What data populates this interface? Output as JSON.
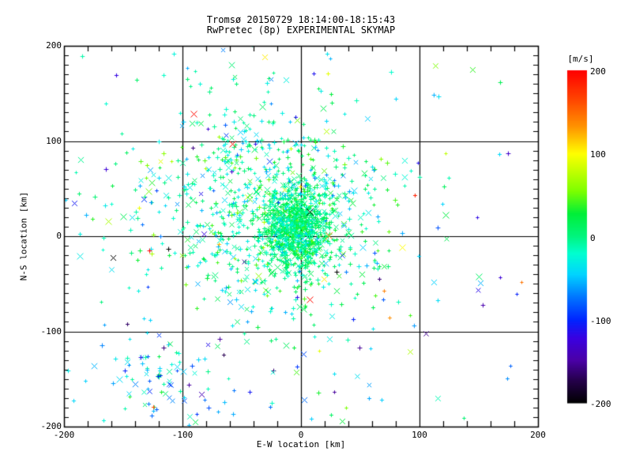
{
  "title": {
    "line1": "Tromsø 20150729 18:14:00-18:15:43",
    "line2": "RwPretec (8p) EXPERIMENTAL SKYMAP"
  },
  "colors": {
    "background": "#ffffff",
    "axis": "#000000",
    "text": "#000000"
  },
  "chart_data": {
    "type": "scatter",
    "title": "Tromsø 20150729 18:14:00-18:15:43",
    "subtitle": "RwPretec (8p) EXPERIMENTAL SKYMAP",
    "xlabel": "E-W location [km]",
    "ylabel": "N-S location [km]",
    "xlim": [
      -200,
      200
    ],
    "ylim": [
      -200,
      200
    ],
    "x_ticks": [
      -200,
      -100,
      0,
      100,
      200
    ],
    "y_ticks": [
      -200,
      -100,
      0,
      100,
      200
    ],
    "x_minor_step": 20,
    "y_minor_step": 10,
    "grid": true,
    "legend_position": "colorbar-right",
    "colorbar": {
      "unit": "[m/s]",
      "min": -200,
      "max": 200,
      "ticks": [
        200,
        100,
        0,
        -100,
        -200
      ],
      "gradient_stops": [
        [
          -200,
          "#000000"
        ],
        [
          -172,
          "#26004d"
        ],
        [
          -148,
          "#4b00a8"
        ],
        [
          -122,
          "#3a00e0"
        ],
        [
          -100,
          "#0024ff"
        ],
        [
          -72,
          "#0077ff"
        ],
        [
          -45,
          "#00d4ff"
        ],
        [
          -20,
          "#00ffd0"
        ],
        [
          0,
          "#00f580"
        ],
        [
          28,
          "#00ef38"
        ],
        [
          55,
          "#7dff00"
        ],
        [
          100,
          "#ffff00"
        ],
        [
          132,
          "#ff9500"
        ],
        [
          163,
          "#ff4a00"
        ],
        [
          200,
          "#ff0000"
        ]
      ]
    },
    "points_encoding": "Doppler velocity [m/s] mapped to color via the colorbar gradient; markers are small plus and cross glyphs; total ~1950 echoes",
    "seed": 11,
    "cross_fraction": 0.26,
    "clusters": [
      {
        "type": "gauss",
        "cx": -4,
        "cy": 10,
        "sx": 14,
        "sy": 21,
        "n": 880,
        "vmean": 4,
        "vsig": 20
      },
      {
        "type": "gauss",
        "cx": -15,
        "cy": 12,
        "sx": 44,
        "sy": 52,
        "n": 560,
        "vmean": -4,
        "vsig": 30
      },
      {
        "type": "gauss",
        "cx": -55,
        "cy": 58,
        "sx": 50,
        "sy": 58,
        "n": 295,
        "vmean": -12,
        "vsig": 34
      },
      {
        "type": "gauss",
        "cx": -120,
        "cy": -148,
        "sx": 33,
        "sy": 26,
        "n": 85,
        "vmean": -48,
        "vsig": 42
      },
      {
        "type": "gauss",
        "cx": 0,
        "cy": -165,
        "sx": 40,
        "sy": 20,
        "n": 14,
        "vmean": -20,
        "vsig": 50
      },
      {
        "type": "uniform",
        "x0": -195,
        "x1": 195,
        "y0": -195,
        "y1": 195,
        "n": 115,
        "vmean": -25,
        "vsig": 70
      }
    ],
    "outliers": [
      {
        "x": -91,
        "y": 129,
        "v": 195,
        "m": "x",
        "s": 4
      },
      {
        "x": -58,
        "y": 97,
        "v": 195,
        "m": "x",
        "s": 4
      },
      {
        "x": 7,
        "y": -66,
        "v": 195,
        "m": "x",
        "s": 4
      },
      {
        "x": -128,
        "y": -15,
        "v": 200,
        "m": "+",
        "s": 3
      },
      {
        "x": 96,
        "y": 43,
        "v": 185,
        "m": "+",
        "s": 2.5
      },
      {
        "x": 23,
        "y": 1,
        "v": 140,
        "m": "x",
        "s": 4.5
      },
      {
        "x": -31,
        "y": 188,
        "v": 105,
        "m": "x",
        "s": 3.5
      },
      {
        "x": 19,
        "y": -45,
        "v": 105,
        "m": "x",
        "s": 3.5
      },
      {
        "x": 85,
        "y": -12,
        "v": 100,
        "m": "x",
        "s": 4
      },
      {
        "x": 15,
        "y": -120,
        "v": 90,
        "m": "+",
        "s": 2
      },
      {
        "x": 21,
        "y": 110,
        "v": 75,
        "m": "x",
        "s": 3.5
      },
      {
        "x": -163,
        "y": 16,
        "v": 70,
        "m": "x",
        "s": 4
      },
      {
        "x": -126,
        "y": -18,
        "v": 70,
        "m": "+",
        "s": 3
      },
      {
        "x": -150,
        "y": 21,
        "v": 15,
        "m": "x",
        "s": 4
      },
      {
        "x": 122,
        "y": 22,
        "v": 25,
        "m": "x",
        "s": 4
      },
      {
        "x": 150,
        "y": -42,
        "v": 10,
        "m": "x",
        "s": 4
      },
      {
        "x": 2,
        "y": -76,
        "v": 20,
        "m": "x",
        "s": 4
      },
      {
        "x": 112,
        "y": -48,
        "v": -45,
        "m": "x",
        "s": 3.5
      },
      {
        "x": 151,
        "y": -49,
        "v": -55,
        "m": "x",
        "s": 3.5
      },
      {
        "x": -133,
        "y": 39,
        "v": -95,
        "m": "x",
        "s": 3.5
      },
      {
        "x": -5,
        "y": 125,
        "v": -110,
        "m": "+",
        "s": 2.5
      },
      {
        "x": -84,
        "y": -166,
        "v": -140,
        "m": "x",
        "s": 3.5
      },
      {
        "x": -69,
        "y": -108,
        "v": -150,
        "m": "+",
        "s": 3
      },
      {
        "x": -116,
        "y": -117,
        "v": -160,
        "m": "+",
        "s": 3
      },
      {
        "x": 66,
        "y": -45,
        "v": -160,
        "m": "+",
        "s": 2.5
      },
      {
        "x": 7,
        "y": 26,
        "v": -200,
        "m": "x",
        "s": 4.5
      },
      {
        "x": -159,
        "y": -22,
        "v": -200,
        "m": "x",
        "s": 3.5
      },
      {
        "x": 30,
        "y": -37,
        "v": -200,
        "m": "+",
        "s": 3
      },
      {
        "x": -112,
        "y": -13,
        "v": -200,
        "m": "+",
        "s": 3
      }
    ]
  }
}
